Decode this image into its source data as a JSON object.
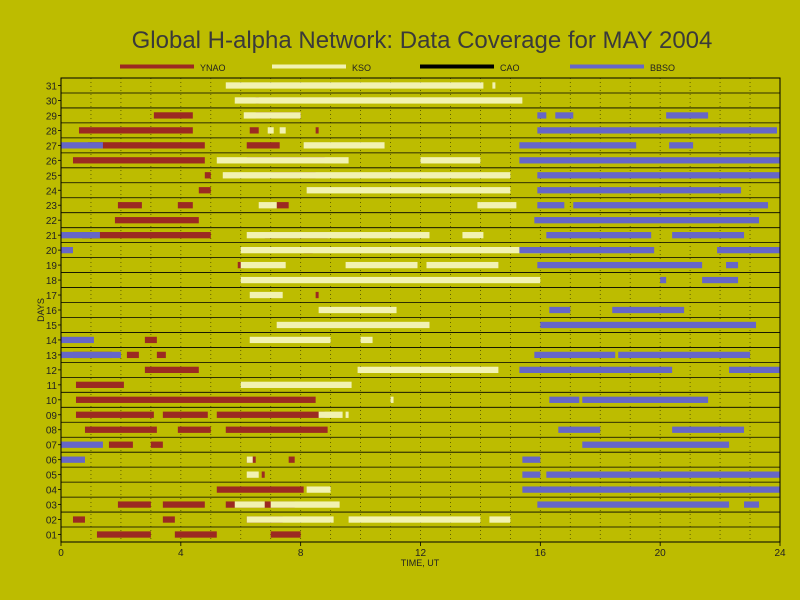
{
  "chart_data": {
    "type": "bar",
    "orientation": "horizontal",
    "title": "Global H-alpha Network: Data Coverage for MAY 2004",
    "xlabel": "TIME, UT",
    "ylabel": "DAYS",
    "xlim": [
      0,
      24
    ],
    "x_ticks": [
      "0",
      "4",
      "8",
      "12",
      "16",
      "20",
      "24"
    ],
    "categories": [
      "01",
      "02",
      "03",
      "04",
      "05",
      "06",
      "07",
      "08",
      "09",
      "10",
      "11",
      "12",
      "13",
      "14",
      "15",
      "16",
      "17",
      "18",
      "19",
      "20",
      "21",
      "22",
      "23",
      "24",
      "25",
      "26",
      "27",
      "28",
      "29",
      "30",
      "31"
    ],
    "grid": true,
    "legend_position": "top",
    "series": [
      {
        "name": "YNAO",
        "color": "#9c2a22",
        "intervals": {
          "01": [
            [
              1.2,
              3.0
            ],
            [
              3.8,
              5.2
            ],
            [
              7.0,
              8.0
            ]
          ],
          "02": [
            [
              0.4,
              0.8
            ],
            [
              3.4,
              3.8
            ],
            [
              6.2,
              7.4
            ]
          ],
          "03": [
            [
              1.9,
              3.0
            ],
            [
              3.4,
              4.8
            ],
            [
              5.5,
              7.8
            ]
          ],
          "04": [
            [
              5.2,
              8.1
            ]
          ],
          "05": [
            [
              6.7,
              6.8
            ]
          ],
          "06": [
            [
              6.2,
              6.5
            ],
            [
              7.6,
              7.8
            ]
          ],
          "07": [
            [
              1.6,
              2.4
            ],
            [
              3.0,
              3.4
            ]
          ],
          "08": [
            [
              0.8,
              3.2
            ],
            [
              3.9,
              5.0
            ],
            [
              5.5,
              8.9
            ]
          ],
          "09": [
            [
              0.5,
              3.1
            ],
            [
              3.4,
              4.9
            ],
            [
              5.2,
              8.8
            ]
          ],
          "10": [
            [
              0.5,
              8.5
            ]
          ],
          "11": [
            [
              0.5,
              2.1
            ]
          ],
          "12": [
            [
              2.8,
              4.6
            ]
          ],
          "13": [
            [
              0.4,
              1.7
            ],
            [
              2.2,
              2.6
            ],
            [
              3.2,
              3.5
            ]
          ],
          "14": [
            [
              2.8,
              3.2
            ]
          ],
          "17": [
            [
              8.5,
              8.6
            ]
          ],
          "19": [
            [
              5.9,
              6.1
            ]
          ],
          "20": [
            [
              8.1,
              8.4
            ]
          ],
          "21": [
            [
              0.7,
              5.0
            ],
            [
              6.8,
              8.9
            ]
          ],
          "22": [
            [
              1.8,
              4.6
            ]
          ],
          "23": [
            [
              1.9,
              2.7
            ],
            [
              3.9,
              4.4
            ],
            [
              7.2,
              7.6
            ]
          ],
          "24": [
            [
              4.6,
              5.0
            ]
          ],
          "25": [
            [
              4.8,
              5.0
            ],
            [
              7.0,
              8.5
            ]
          ],
          "26": [
            [
              0.4,
              4.8
            ],
            [
              6.2,
              8.8
            ]
          ],
          "27": [
            [
              0.9,
              4.8
            ],
            [
              6.2,
              7.3
            ]
          ],
          "28": [
            [
              0.6,
              4.4
            ],
            [
              6.3,
              6.6
            ],
            [
              8.5,
              8.6
            ]
          ],
          "29": [
            [
              3.1,
              4.4
            ],
            [
              6.5,
              8.0
            ]
          ],
          "30": [
            [
              6.5,
              6.6
            ]
          ]
        }
      },
      {
        "name": "KSO",
        "color": "#f2f2b2",
        "intervals": {
          "01": [],
          "02": [
            [
              6.2,
              9.1
            ],
            [
              9.6,
              14.0
            ],
            [
              14.3,
              15.0
            ]
          ],
          "03": [
            [
              5.8,
              6.8
            ],
            [
              7.0,
              9.3
            ]
          ],
          "04": [
            [
              8.2,
              9.0
            ]
          ],
          "05": [
            [
              6.2,
              6.6
            ]
          ],
          "06": [
            [
              6.2,
              6.4
            ]
          ],
          "09": [
            [
              8.6,
              9.4
            ],
            [
              9.5,
              9.6
            ]
          ],
          "10": [
            [
              11.0,
              11.1
            ]
          ],
          "11": [
            [
              6.0,
              9.7
            ]
          ],
          "12": [
            [
              9.9,
              14.6
            ]
          ],
          "14": [
            [
              6.3,
              9.0
            ],
            [
              10.0,
              10.4
            ]
          ],
          "15": [
            [
              7.2,
              12.3
            ]
          ],
          "16": [
            [
              8.6,
              11.2
            ]
          ],
          "17": [
            [
              6.3,
              7.4
            ]
          ],
          "18": [
            [
              6.0,
              16.0
            ]
          ],
          "19": [
            [
              6.0,
              7.5
            ],
            [
              9.5,
              11.9
            ],
            [
              12.2,
              14.6
            ]
          ],
          "20": [
            [
              6.0,
              16.0
            ]
          ],
          "21": [
            [
              6.2,
              12.3
            ],
            [
              13.4,
              14.1
            ]
          ],
          "23": [
            [
              6.6,
              7.2
            ],
            [
              13.9,
              15.2
            ]
          ],
          "24": [
            [
              8.2,
              15.0
            ]
          ],
          "25": [
            [
              5.4,
              15.0
            ]
          ],
          "26": [
            [
              5.2,
              9.6
            ],
            [
              12.0,
              14.0
            ]
          ],
          "27": [
            [
              8.1,
              10.8
            ]
          ],
          "28": [
            [
              6.9,
              7.1
            ],
            [
              7.3,
              7.5
            ]
          ],
          "29": [
            [
              6.1,
              8.0
            ]
          ],
          "30": [
            [
              5.8,
              15.4
            ]
          ],
          "31": [
            [
              5.5,
              14.1
            ],
            [
              14.4,
              14.5
            ]
          ]
        }
      },
      {
        "name": "CAO",
        "color": "#000000",
        "intervals": {}
      },
      {
        "name": "BBSO",
        "color": "#6666c8",
        "intervals": {
          "03": [
            [
              15.9,
              22.3
            ],
            [
              22.8,
              23.3
            ]
          ],
          "04": [
            [
              15.4,
              24.0
            ]
          ],
          "05": [
            [
              15.4,
              16.0
            ],
            [
              16.2,
              24.0
            ]
          ],
          "06": [
            [
              0.0,
              0.8
            ],
            [
              15.4,
              16.0
            ]
          ],
          "07": [
            [
              0.0,
              1.4
            ],
            [
              17.4,
              22.3
            ]
          ],
          "08": [
            [
              16.6,
              18.0
            ],
            [
              20.4,
              22.8
            ]
          ],
          "10": [
            [
              16.3,
              17.3
            ],
            [
              17.4,
              21.6
            ]
          ],
          "12": [
            [
              15.3,
              20.4
            ],
            [
              22.3,
              24.0
            ]
          ],
          "13": [
            [
              0.0,
              2.0
            ],
            [
              15.8,
              18.5
            ],
            [
              18.6,
              23.0
            ]
          ],
          "14": [
            [
              0.0,
              1.1
            ]
          ],
          "15": [
            [
              16.0,
              23.2
            ]
          ],
          "16": [
            [
              16.3,
              17.0
            ],
            [
              18.4,
              20.8
            ]
          ],
          "18": [
            [
              20.0,
              20.2
            ],
            [
              21.4,
              22.6
            ]
          ],
          "19": [
            [
              15.9,
              21.4
            ],
            [
              22.2,
              22.6
            ]
          ],
          "20": [
            [
              0.0,
              0.4
            ],
            [
              15.3,
              19.8
            ],
            [
              21.9,
              24.0
            ]
          ],
          "21": [
            [
              0.0,
              1.3
            ],
            [
              16.2,
              19.7
            ],
            [
              20.4,
              22.8
            ]
          ],
          "22": [
            [
              15.8,
              23.3
            ]
          ],
          "23": [
            [
              15.9,
              16.8
            ],
            [
              17.1,
              23.6
            ]
          ],
          "24": [
            [
              15.9,
              22.7
            ]
          ],
          "25": [
            [
              15.9,
              24.0
            ]
          ],
          "26": [
            [
              15.3,
              24.0
            ]
          ],
          "27": [
            [
              0.0,
              1.4
            ],
            [
              15.3,
              19.2
            ],
            [
              20.3,
              21.1
            ]
          ],
          "28": [
            [
              15.9,
              23.9
            ]
          ],
          "29": [
            [
              15.9,
              16.2
            ],
            [
              16.5,
              17.1
            ],
            [
              20.2,
              21.6
            ]
          ]
        }
      }
    ]
  }
}
